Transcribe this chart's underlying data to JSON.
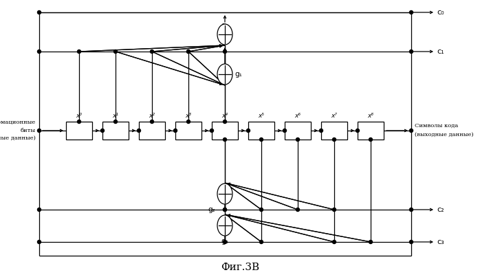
{
  "title": "Фиг.3В",
  "left_label_line1": "Информационные",
  "left_label_line2": "биты",
  "left_label_line3": "(входные данные)",
  "right_label_line1": "Символы кода",
  "right_label_line2": "(выходные данные)",
  "bg_color": "#ffffff",
  "line_color": "#000000"
}
